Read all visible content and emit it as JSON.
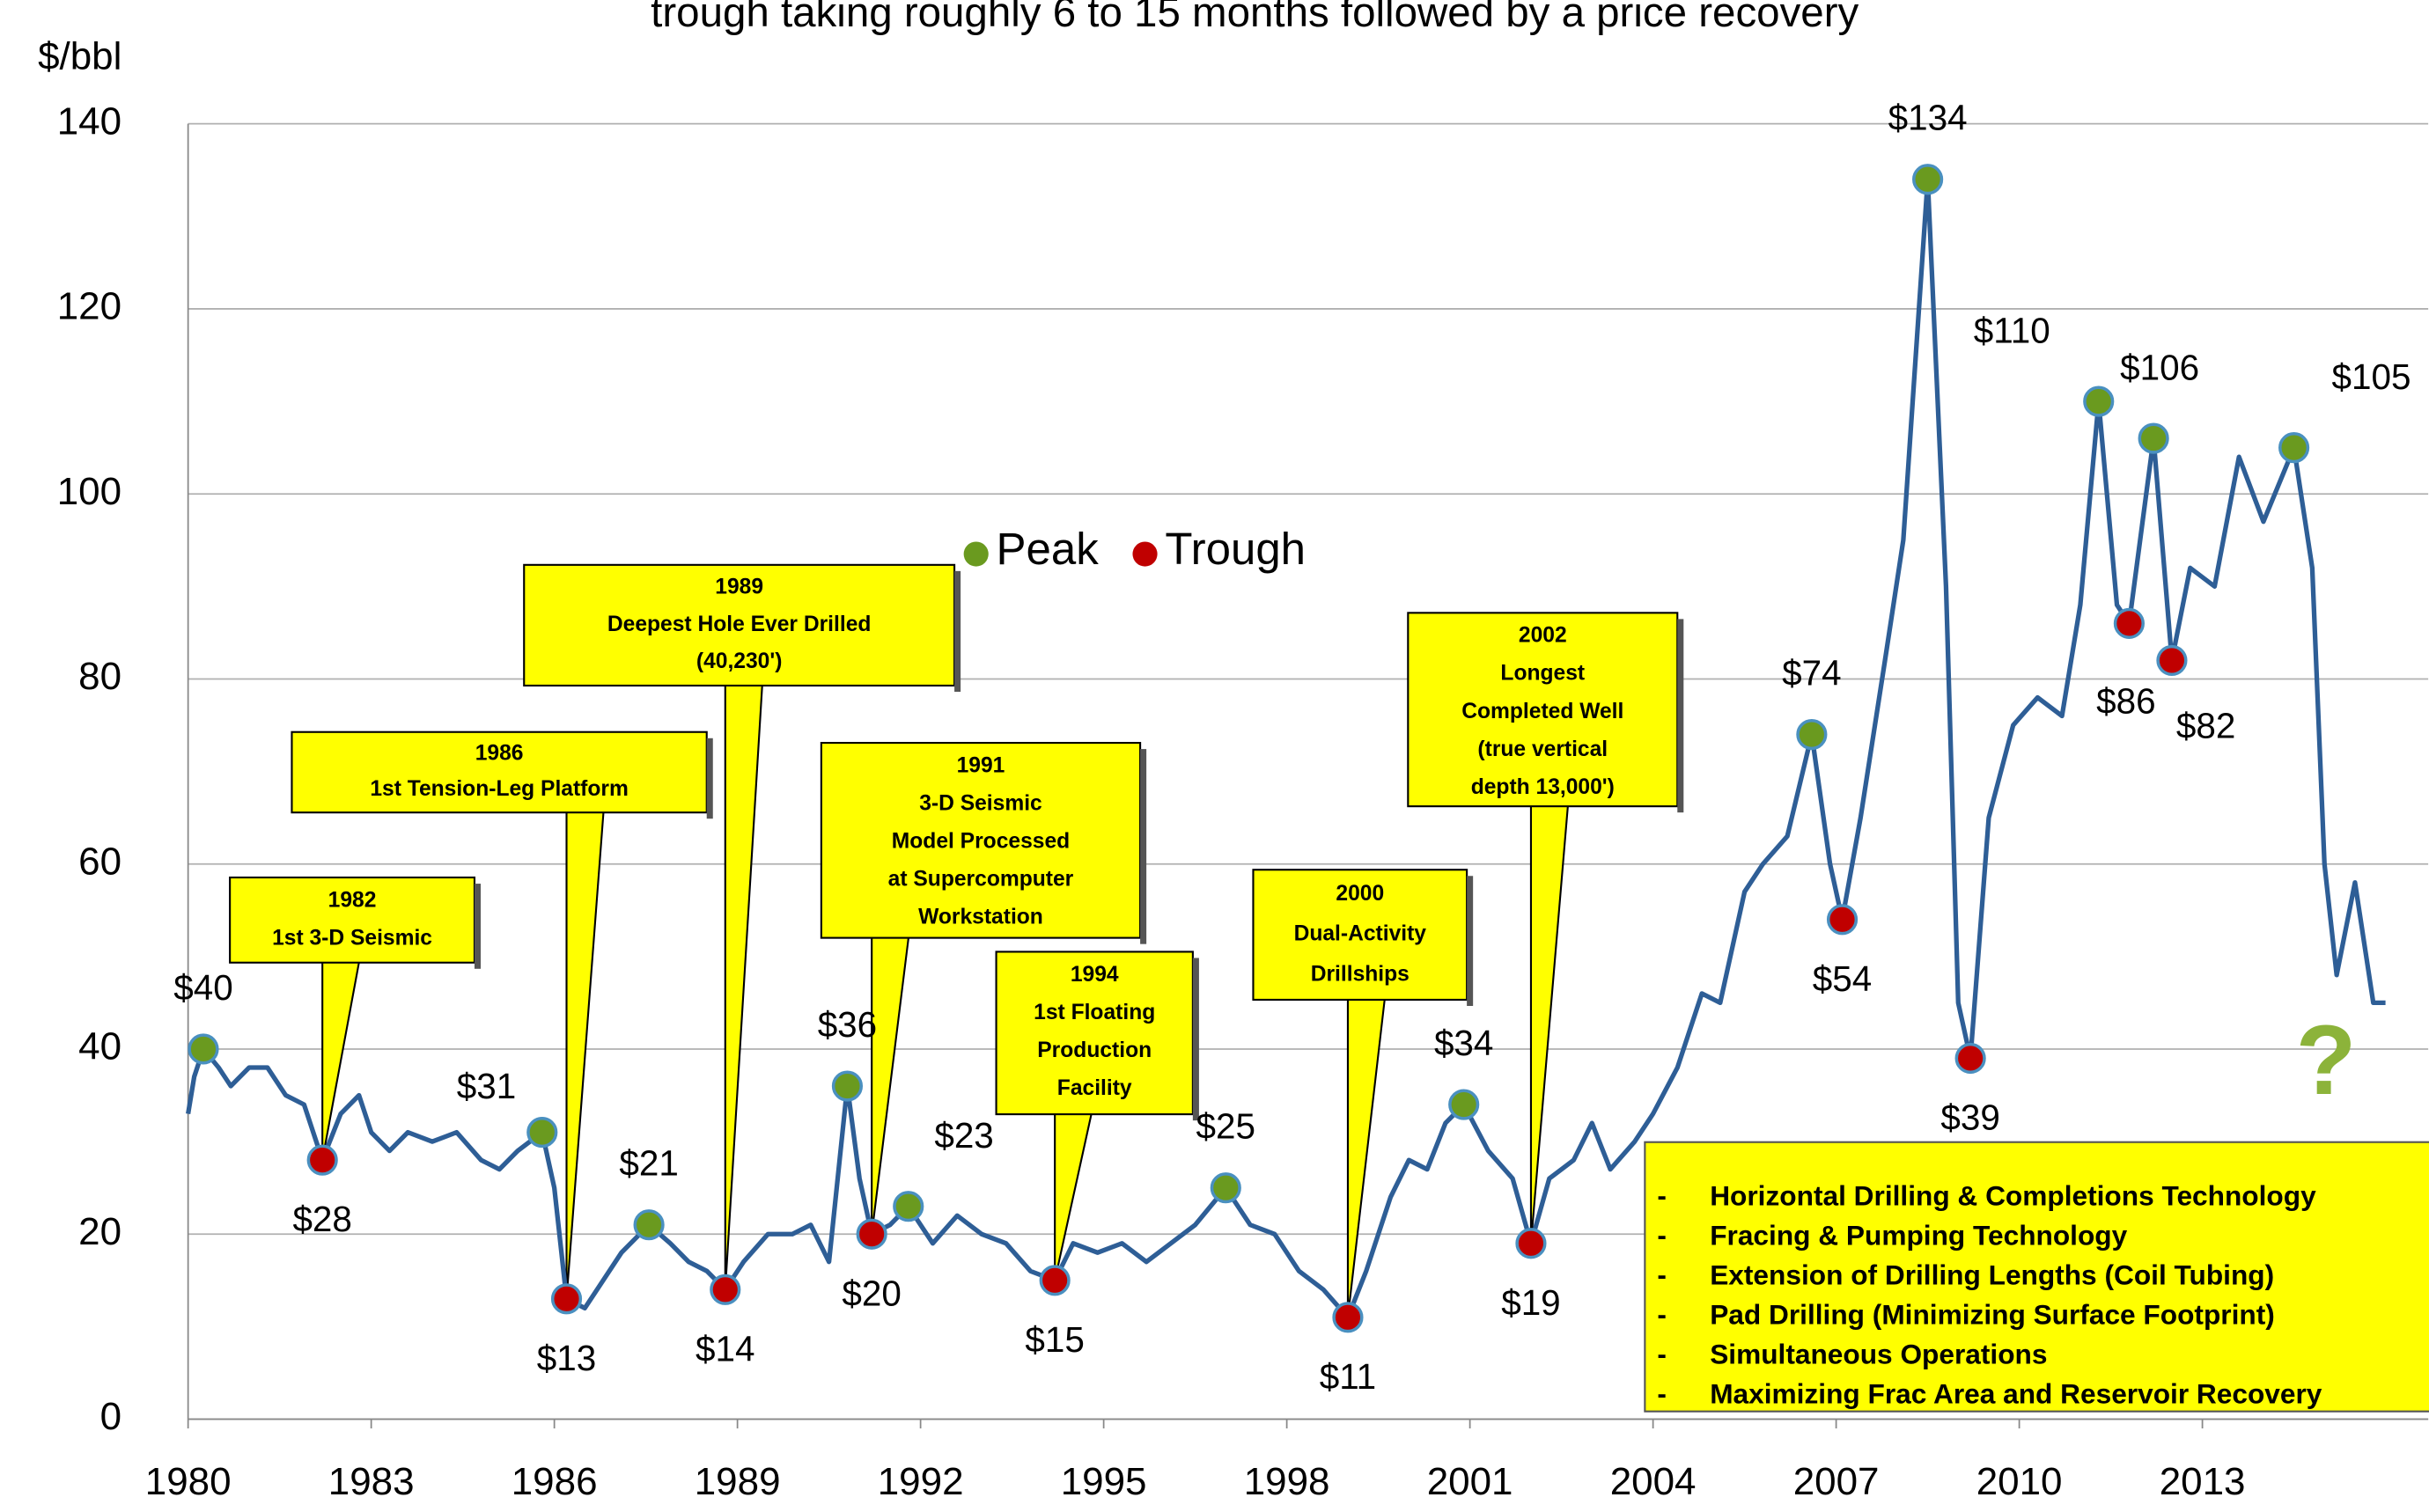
{
  "chart_data": {
    "type": "line",
    "title": "trough taking roughly 6 to 15 months followed by a price recovery",
    "y_label": "$/bbl",
    "xlim": [
      1980,
      2016.7
    ],
    "xticks": [
      1980,
      1983,
      1986,
      1989,
      1992,
      1995,
      1998,
      2001,
      2004,
      2007,
      2010,
      2013
    ],
    "ylim": [
      0,
      140
    ],
    "yticks": [
      0,
      20,
      40,
      60,
      80,
      100,
      120,
      140
    ],
    "grid": true,
    "series": [
      {
        "color": "#2e5e96",
        "x": [
          1980.0,
          1980.1,
          1980.25,
          1980.5,
          1980.7,
          1981.0,
          1981.3,
          1981.6,
          1981.9,
          1982.2,
          1982.5,
          1982.8,
          1983.0,
          1983.3,
          1983.6,
          1984.0,
          1984.4,
          1984.8,
          1985.1,
          1985.4,
          1985.8,
          1986.0,
          1986.2,
          1986.5,
          1986.8,
          1987.1,
          1987.55,
          1987.9,
          1988.2,
          1988.5,
          1988.8,
          1989.1,
          1989.5,
          1989.9,
          1990.2,
          1990.5,
          1990.8,
          1991.0,
          1991.2,
          1991.5,
          1991.8,
          1992.2,
          1992.6,
          1993.0,
          1993.4,
          1993.8,
          1994.2,
          1994.5,
          1994.9,
          1995.3,
          1995.7,
          1996.1,
          1996.5,
          1997.0,
          1997.4,
          1997.8,
          1998.2,
          1998.6,
          1999.0,
          1999.3,
          1999.7,
          2000.0,
          2000.3,
          2000.6,
          2000.9,
          2001.3,
          2001.7,
          2002.0,
          2002.3,
          2002.7,
          2003.0,
          2003.3,
          2003.7,
          2004.0,
          2004.4,
          2004.8,
          2005.1,
          2005.5,
          2005.8,
          2006.2,
          2006.6,
          2006.9,
          2007.1,
          2007.4,
          2007.8,
          2008.1,
          2008.5,
          2008.8,
          2009.0,
          2009.2,
          2009.5,
          2009.9,
          2010.3,
          2010.7,
          2011.0,
          2011.3,
          2011.6,
          2011.8,
          2012.2,
          2012.5,
          2012.8,
          2013.2,
          2013.6,
          2014.0,
          2014.5,
          2014.8,
          2015.0,
          2015.2,
          2015.5,
          2015.8,
          2016.0
        ],
        "values": [
          33,
          37,
          40,
          38,
          36,
          38,
          38,
          35,
          34,
          28,
          33,
          35,
          31,
          29,
          31,
          30,
          31,
          28,
          27,
          29,
          31,
          25,
          13,
          12,
          15,
          18,
          21,
          19,
          17,
          16,
          14,
          17,
          20,
          20,
          21,
          17,
          36,
          26,
          20,
          21,
          23,
          19,
          22,
          20,
          19,
          16,
          15,
          19,
          18,
          19,
          17,
          19,
          21,
          25,
          21,
          20,
          16,
          14,
          11,
          16,
          24,
          28,
          27,
          32,
          34,
          29,
          26,
          19,
          26,
          28,
          32,
          27,
          30,
          33,
          38,
          46,
          45,
          57,
          60,
          63,
          74,
          60,
          54,
          65,
          82,
          95,
          134,
          90,
          45,
          39,
          65,
          75,
          78,
          76,
          88,
          110,
          88,
          86,
          106,
          82,
          92,
          90,
          104,
          97,
          105,
          92,
          60,
          48,
          58,
          45,
          45
        ]
      },
      {
        "name": "Peak",
        "color": "#6a9a1f",
        "marker": true,
        "x": [
          1980.25,
          1985.8,
          1987.55,
          1990.8,
          1991.8,
          1997.0,
          2000.9,
          2006.6,
          2008.5,
          2011.3,
          2012.2,
          2014.5
        ],
        "values": [
          40,
          31,
          21,
          36,
          23,
          25,
          34,
          74,
          134,
          110,
          106,
          105
        ],
        "value_labels": [
          "$40",
          "$31",
          "$21",
          "$36",
          "$23",
          "$25",
          "$34",
          "$74",
          "$134",
          "$110",
          "$106",
          "$105"
        ]
      },
      {
        "name": "Trough",
        "color": "#c00000",
        "marker": true,
        "x": [
          1982.2,
          1986.2,
          1988.8,
          1991.2,
          1994.2,
          1999.0,
          2002.0,
          2007.1,
          2009.2,
          2011.8,
          2012.5
        ],
        "values": [
          28,
          13,
          14,
          20,
          15,
          11,
          19,
          54,
          39,
          86,
          82
        ],
        "value_labels": [
          "$28",
          "$13",
          "$14",
          "$20",
          "$15",
          "$11",
          "$19",
          "$54",
          "$39",
          "$86",
          "$82"
        ]
      }
    ],
    "annotations": [
      {
        "lines": [
          "1982",
          "1st 3-D Seismic"
        ],
        "x": 1982.2,
        "y": 28
      },
      {
        "lines": [
          "1986",
          "1st Tension-Leg Platform"
        ],
        "x": 1986.2,
        "y": 13
      },
      {
        "lines": [
          "1989",
          "Deepest Hole Ever Drilled",
          "(40,230')"
        ],
        "x": 1988.8,
        "y": 14
      },
      {
        "lines": [
          "1991",
          "3-D Seismic",
          "Model Processed",
          "at Supercomputer",
          "Workstation"
        ],
        "x": 1991.2,
        "y": 20
      },
      {
        "lines": [
          "1994",
          "1st Floating",
          "Production",
          "Facility"
        ],
        "x": 1994.2,
        "y": 15
      },
      {
        "lines": [
          "2000",
          "Dual-Activity",
          "Drillships"
        ],
        "x": 1999.0,
        "y": 11
      },
      {
        "lines": [
          "2002",
          "Longest",
          "Completed Well",
          "(true vertical",
          "depth 13,000')"
        ],
        "x": 2002.0,
        "y": 19
      }
    ],
    "question": "?",
    "technologies": [
      "Horizontal Drilling & Completions Technology",
      "Fracing & Pumping Technology",
      "Extension of Drilling Lengths (Coil Tubing)",
      "Pad Drilling (Minimizing Surface Footprint)",
      "Simultaneous Operations",
      "Maximizing Frac Area and Reservoir Recovery"
    ]
  }
}
